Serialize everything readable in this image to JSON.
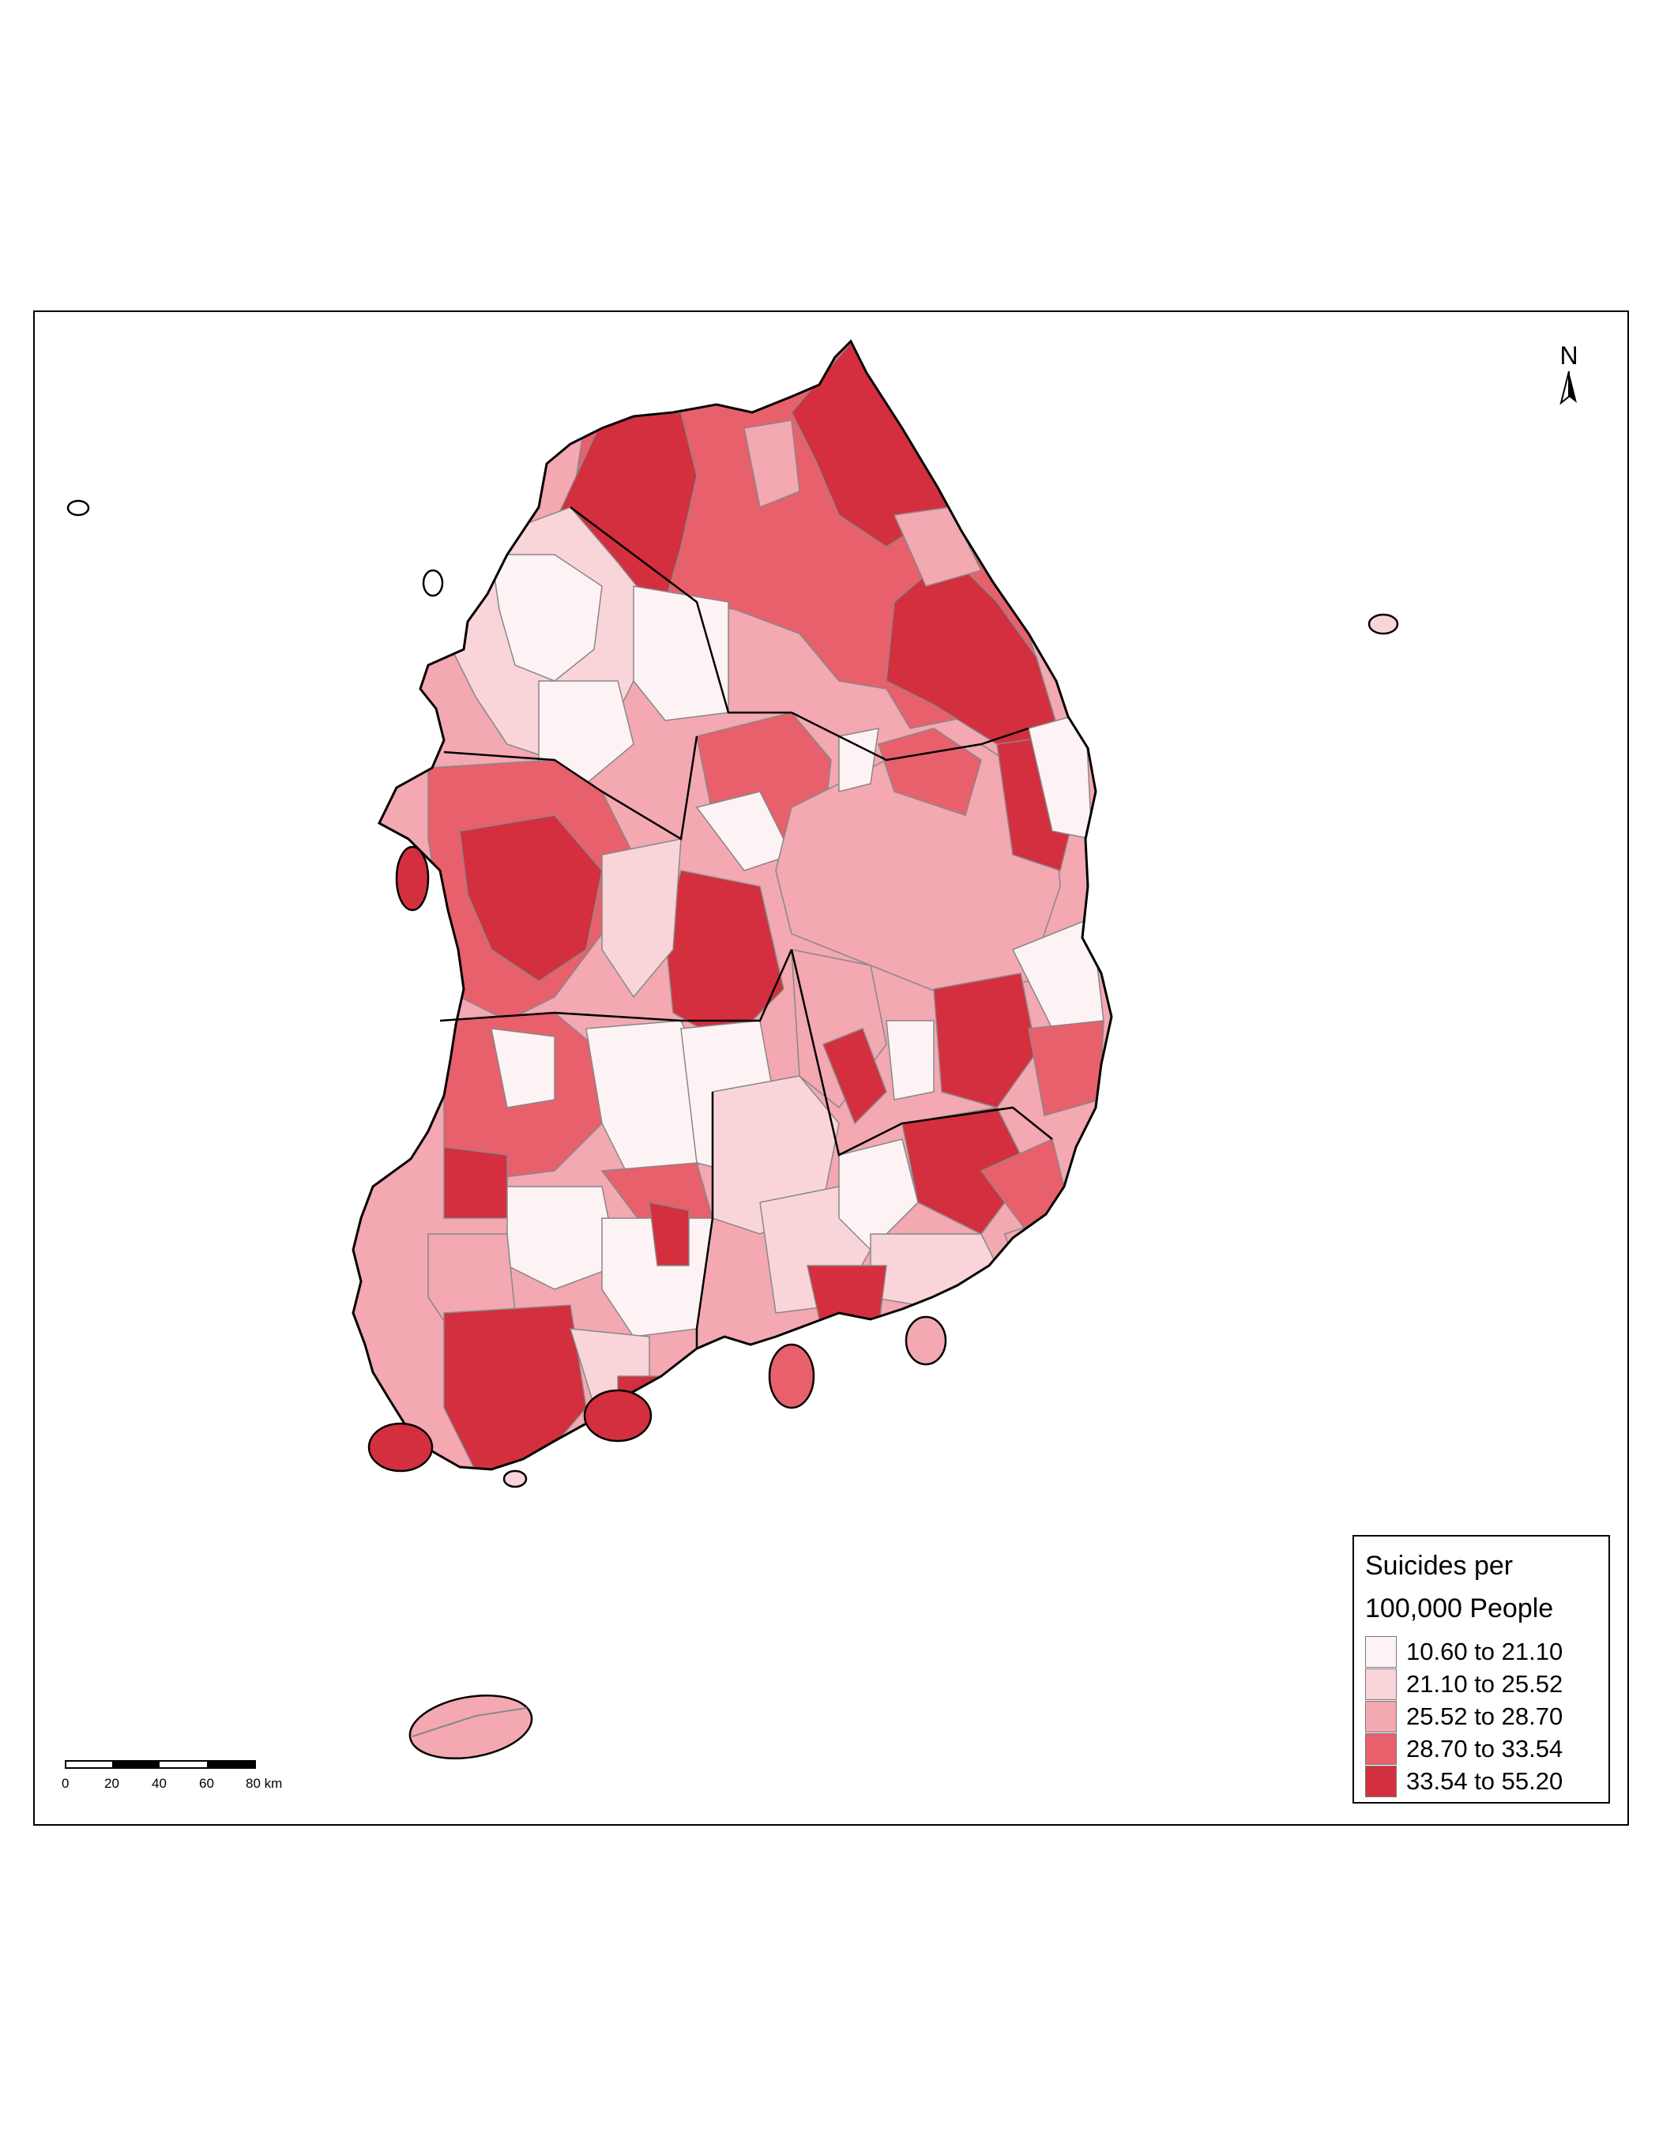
{
  "legend": {
    "title_line1": "Suicides per",
    "title_line2": "100,000 People",
    "classes": [
      {
        "label": "10.60 to 21.10",
        "color": "#fdf3f4"
      },
      {
        "label": "21.10 to 25.52",
        "color": "#f9d5da"
      },
      {
        "label": "25.52 to 28.70",
        "color": "#f3a8b2"
      },
      {
        "label": "28.70 to 33.54",
        "color": "#e8606c"
      },
      {
        "label": "33.54 to 55.20",
        "color": "#d32f3e"
      }
    ]
  },
  "north_arrow": {
    "letter": "N",
    "icon": "north-arrow-icon"
  },
  "scale_bar": {
    "ticks": [
      "0",
      "20",
      "40",
      "60",
      "80 km"
    ]
  },
  "colors": {
    "border": "#000000",
    "internal_border": "#888888"
  }
}
